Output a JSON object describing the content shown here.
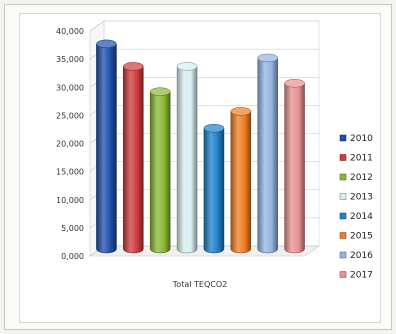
{
  "chart_data": {
    "type": "bar",
    "categories": [
      "Total TEQCO2"
    ],
    "series": [
      {
        "name": "2010",
        "values": [
          37000
        ],
        "color": "#1f4fa8"
      },
      {
        "name": "2011",
        "values": [
          33000
        ],
        "color": "#d03a3c"
      },
      {
        "name": "2012",
        "values": [
          28500
        ],
        "color": "#8ab832"
      },
      {
        "name": "2013",
        "values": [
          33000
        ],
        "color": "#d8eef0"
      },
      {
        "name": "2014",
        "values": [
          22000
        ],
        "color": "#1e7fc8"
      },
      {
        "name": "2015",
        "values": [
          25000
        ],
        "color": "#f07d24"
      },
      {
        "name": "2016",
        "values": [
          34500
        ],
        "color": "#92b4e0"
      },
      {
        "name": "2017",
        "values": [
          30000
        ],
        "color": "#e99090"
      }
    ],
    "title": "",
    "xlabel": "",
    "ylabel": "",
    "ylim": [
      0,
      40000
    ],
    "yticks": [
      "0,000",
      "5,000",
      "10,000",
      "15,000",
      "20,000",
      "25,000",
      "30,000",
      "35,000",
      "40,000"
    ],
    "grid": true,
    "legend": "right",
    "style": "3d-cylinder"
  }
}
